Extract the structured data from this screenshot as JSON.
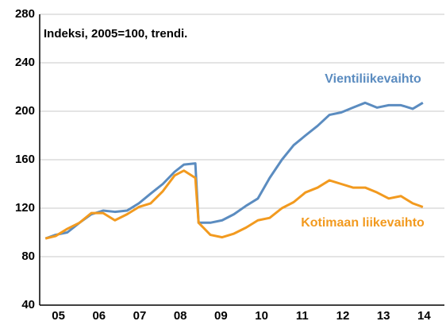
{
  "chart_data": {
    "type": "line",
    "title": "Indeksi, 2005=100, trendi.",
    "x": [
      2005.18,
      2005.43,
      2005.72,
      2006.02,
      2006.31,
      2006.6,
      2006.89,
      2007.19,
      2007.48,
      2007.77,
      2008.07,
      2008.36,
      2008.59,
      2008.87,
      2008.95,
      2009.24,
      2009.53,
      2009.82,
      2010.12,
      2010.41,
      2010.7,
      2011.0,
      2011.29,
      2011.58,
      2011.88,
      2012.17,
      2012.46,
      2012.75,
      2013.05,
      2013.34,
      2013.63,
      2013.93,
      2014.22,
      2014.47
    ],
    "series": [
      {
        "name": "Vientiliikevaihto",
        "color": "#5b8cc0",
        "values": [
          95,
          98,
          100,
          108,
          115,
          118,
          117,
          118,
          124,
          132,
          140,
          150,
          156,
          157,
          108,
          108,
          110,
          115,
          122,
          128,
          145,
          160,
          172,
          180,
          188,
          197,
          199,
          203,
          207,
          203,
          205,
          205,
          202,
          207
        ]
      },
      {
        "name": "Kotimaan liikevaihto",
        "color": "#f29a1f",
        "values": [
          95,
          97,
          103,
          108,
          116,
          116,
          110,
          115,
          121,
          124,
          134,
          147,
          151,
          145,
          108,
          98,
          96,
          99,
          104,
          110,
          112,
          120,
          125,
          133,
          137,
          143,
          140,
          137,
          137,
          133,
          128,
          130,
          124,
          121
        ]
      }
    ],
    "xlim": [
      2005,
      2015
    ],
    "xticks": [
      {
        "value": 2005.5,
        "label": "05"
      },
      {
        "value": 2006.5,
        "label": "06"
      },
      {
        "value": 2007.5,
        "label": "07"
      },
      {
        "value": 2008.5,
        "label": "08"
      },
      {
        "value": 2009.5,
        "label": "09"
      },
      {
        "value": 2010.5,
        "label": "10"
      },
      {
        "value": 2011.5,
        "label": "11"
      },
      {
        "value": 2012.5,
        "label": "12"
      },
      {
        "value": 2013.5,
        "label": "13"
      },
      {
        "value": 2014.5,
        "label": "14"
      }
    ],
    "ylim": [
      40,
      280
    ],
    "yticks": [
      40,
      80,
      120,
      160,
      200,
      240,
      280
    ],
    "grid": true
  }
}
